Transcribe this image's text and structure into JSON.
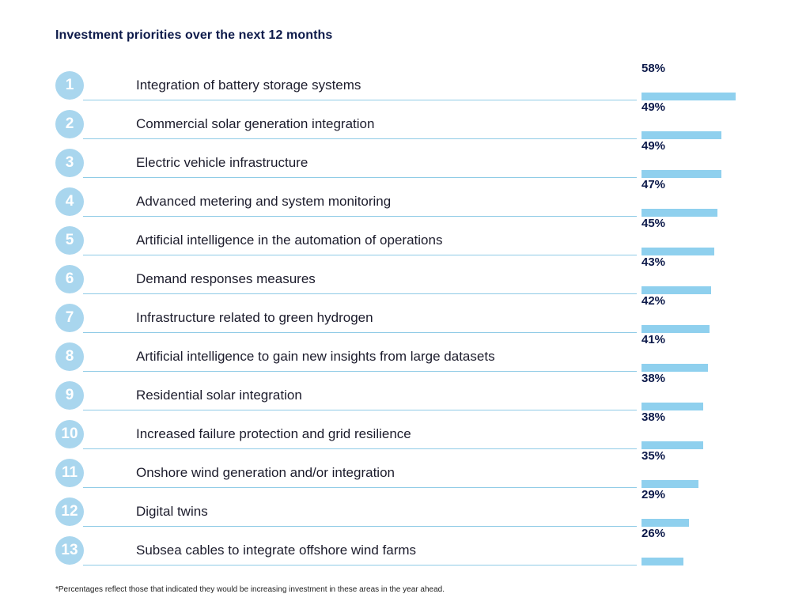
{
  "title": "Investment priorities over the next 12 months",
  "footnote": "*Percentages reflect those that indicated they would be increasing investment in these areas in the year ahead.",
  "colors": {
    "badge": "#a9d6ee",
    "bar": "#8fd0ee",
    "rule": "#8fcbe6",
    "title": "#0d1a4a"
  },
  "chart_data": {
    "type": "bar",
    "orientation": "horizontal",
    "title": "Investment priorities over the next 12 months",
    "categories": [
      "Integration of battery storage systems",
      "Commercial solar generation integration",
      "Electric vehicle infrastructure",
      "Advanced metering and system monitoring",
      "Artificial intelligence in the automation of operations",
      "Demand responses measures",
      "Infrastructure related to green hydrogen",
      "Artificial intelligence to gain new insights from large datasets",
      "Residential solar integration",
      "Increased failure protection and grid resilience",
      "Onshore wind generation and/or integration",
      "Digital twins",
      "Subsea cables to integrate offshore wind farms"
    ],
    "ranks": [
      "1",
      "2",
      "3",
      "4",
      "5",
      "6",
      "7",
      "8",
      "9",
      "10",
      "11",
      "12",
      "13"
    ],
    "values": [
      58,
      49,
      49,
      47,
      45,
      43,
      42,
      41,
      38,
      38,
      35,
      29,
      26
    ],
    "value_labels": [
      "58%",
      "49%",
      "49%",
      "47%",
      "45%",
      "43%",
      "42%",
      "41%",
      "38%",
      "38%",
      "35%",
      "29%",
      "26%"
    ],
    "unit": "%",
    "xlim": [
      0,
      58
    ]
  }
}
